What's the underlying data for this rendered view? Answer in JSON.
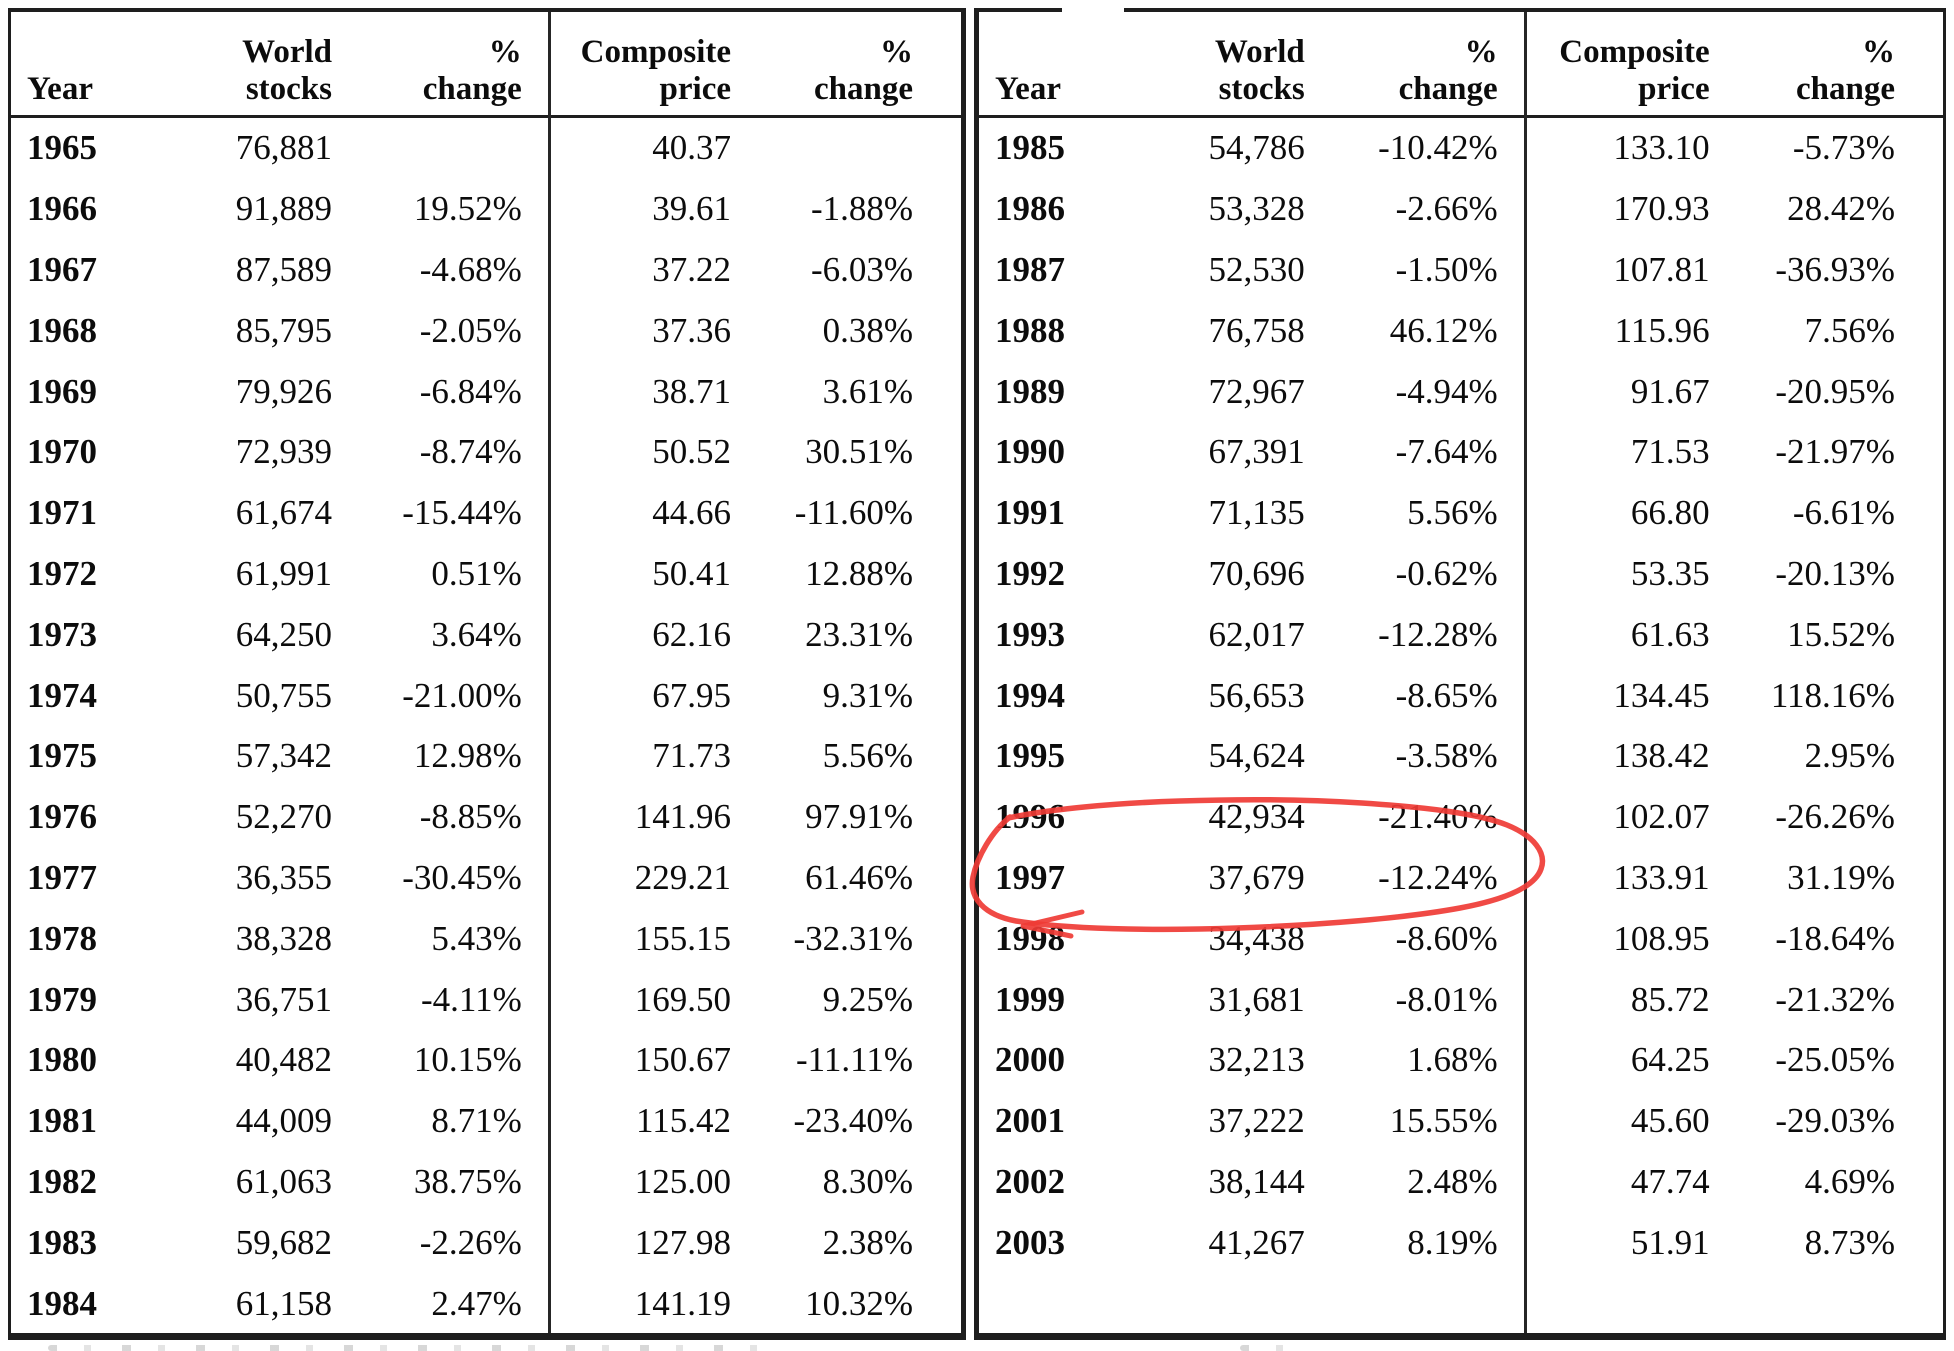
{
  "annotation": {
    "type": "hand-drawn-circle",
    "color": "#ef3b35",
    "circled_rows": [
      "1996",
      "1997"
    ],
    "circled_values": [
      "42,934",
      "-21.40%",
      "37,679",
      "-12.24%"
    ]
  },
  "colors": {
    "table_border": "#1e1e1e",
    "text": "#0c0c0c",
    "background": "#ffffff"
  },
  "tables": [
    {
      "id": "left",
      "headers": [
        [
          "Year"
        ],
        [
          "World",
          "stocks"
        ],
        [
          "%",
          "change"
        ],
        [
          "Composite",
          "price"
        ],
        [
          "%",
          "change"
        ]
      ],
      "rows": [
        [
          "1965",
          "76,881",
          "",
          "40.37",
          ""
        ],
        [
          "1966",
          "91,889",
          "19.52%",
          "39.61",
          "-1.88%"
        ],
        [
          "1967",
          "87,589",
          "-4.68%",
          "37.22",
          "-6.03%"
        ],
        [
          "1968",
          "85,795",
          "-2.05%",
          "37.36",
          "0.38%"
        ],
        [
          "1969",
          "79,926",
          "-6.84%",
          "38.71",
          "3.61%"
        ],
        [
          "1970",
          "72,939",
          "-8.74%",
          "50.52",
          "30.51%"
        ],
        [
          "1971",
          "61,674",
          "-15.44%",
          "44.66",
          "-11.60%"
        ],
        [
          "1972",
          "61,991",
          "0.51%",
          "50.41",
          "12.88%"
        ],
        [
          "1973",
          "64,250",
          "3.64%",
          "62.16",
          "23.31%"
        ],
        [
          "1974",
          "50,755",
          "-21.00%",
          "67.95",
          "9.31%"
        ],
        [
          "1975",
          "57,342",
          "12.98%",
          "71.73",
          "5.56%"
        ],
        [
          "1976",
          "52,270",
          "-8.85%",
          "141.96",
          "97.91%"
        ],
        [
          "1977",
          "36,355",
          "-30.45%",
          "229.21",
          "61.46%"
        ],
        [
          "1978",
          "38,328",
          "5.43%",
          "155.15",
          "-32.31%"
        ],
        [
          "1979",
          "36,751",
          "-4.11%",
          "169.50",
          "9.25%"
        ],
        [
          "1980",
          "40,482",
          "10.15%",
          "150.67",
          "-11.11%"
        ],
        [
          "1981",
          "44,009",
          "8.71%",
          "115.42",
          "-23.40%"
        ],
        [
          "1982",
          "61,063",
          "38.75%",
          "125.00",
          "8.30%"
        ],
        [
          "1983",
          "59,682",
          "-2.26%",
          "127.98",
          "2.38%"
        ],
        [
          "1984",
          "61,158",
          "2.47%",
          "141.19",
          "10.32%"
        ]
      ]
    },
    {
      "id": "right",
      "headers": [
        [
          "Year"
        ],
        [
          "World",
          "stocks"
        ],
        [
          "%",
          "change"
        ],
        [
          "Composite",
          "price"
        ],
        [
          "%",
          "change"
        ]
      ],
      "rows": [
        [
          "1985",
          "54,786",
          "-10.42%",
          "133.10",
          "-5.73%"
        ],
        [
          "1986",
          "53,328",
          "-2.66%",
          "170.93",
          "28.42%"
        ],
        [
          "1987",
          "52,530",
          "-1.50%",
          "107.81",
          "-36.93%"
        ],
        [
          "1988",
          "76,758",
          "46.12%",
          "115.96",
          "7.56%"
        ],
        [
          "1989",
          "72,967",
          "-4.94%",
          "91.67",
          "-20.95%"
        ],
        [
          "1990",
          "67,391",
          "-7.64%",
          "71.53",
          "-21.97%"
        ],
        [
          "1991",
          "71,135",
          "5.56%",
          "66.80",
          "-6.61%"
        ],
        [
          "1992",
          "70,696",
          "-0.62%",
          "53.35",
          "-20.13%"
        ],
        [
          "1993",
          "62,017",
          "-12.28%",
          "61.63",
          "15.52%"
        ],
        [
          "1994",
          "56,653",
          "-8.65%",
          "134.45",
          "118.16%"
        ],
        [
          "1995",
          "54,624",
          "-3.58%",
          "138.42",
          "2.95%"
        ],
        [
          "1996",
          "42,934",
          "-21.40%",
          "102.07",
          "-26.26%"
        ],
        [
          "1997",
          "37,679",
          "-12.24%",
          "133.91",
          "31.19%"
        ],
        [
          "1998",
          "34,438",
          "-8.60%",
          "108.95",
          "-18.64%"
        ],
        [
          "1999",
          "31,681",
          "-8.01%",
          "85.72",
          "-21.32%"
        ],
        [
          "2000",
          "32,213",
          "1.68%",
          "64.25",
          "-25.05%"
        ],
        [
          "2001",
          "37,222",
          "15.55%",
          "45.60",
          "-29.03%"
        ],
        [
          "2002",
          "38,144",
          "2.48%",
          "47.74",
          "4.69%"
        ],
        [
          "2003",
          "41,267",
          "8.19%",
          "51.91",
          "8.73%"
        ]
      ]
    }
  ]
}
